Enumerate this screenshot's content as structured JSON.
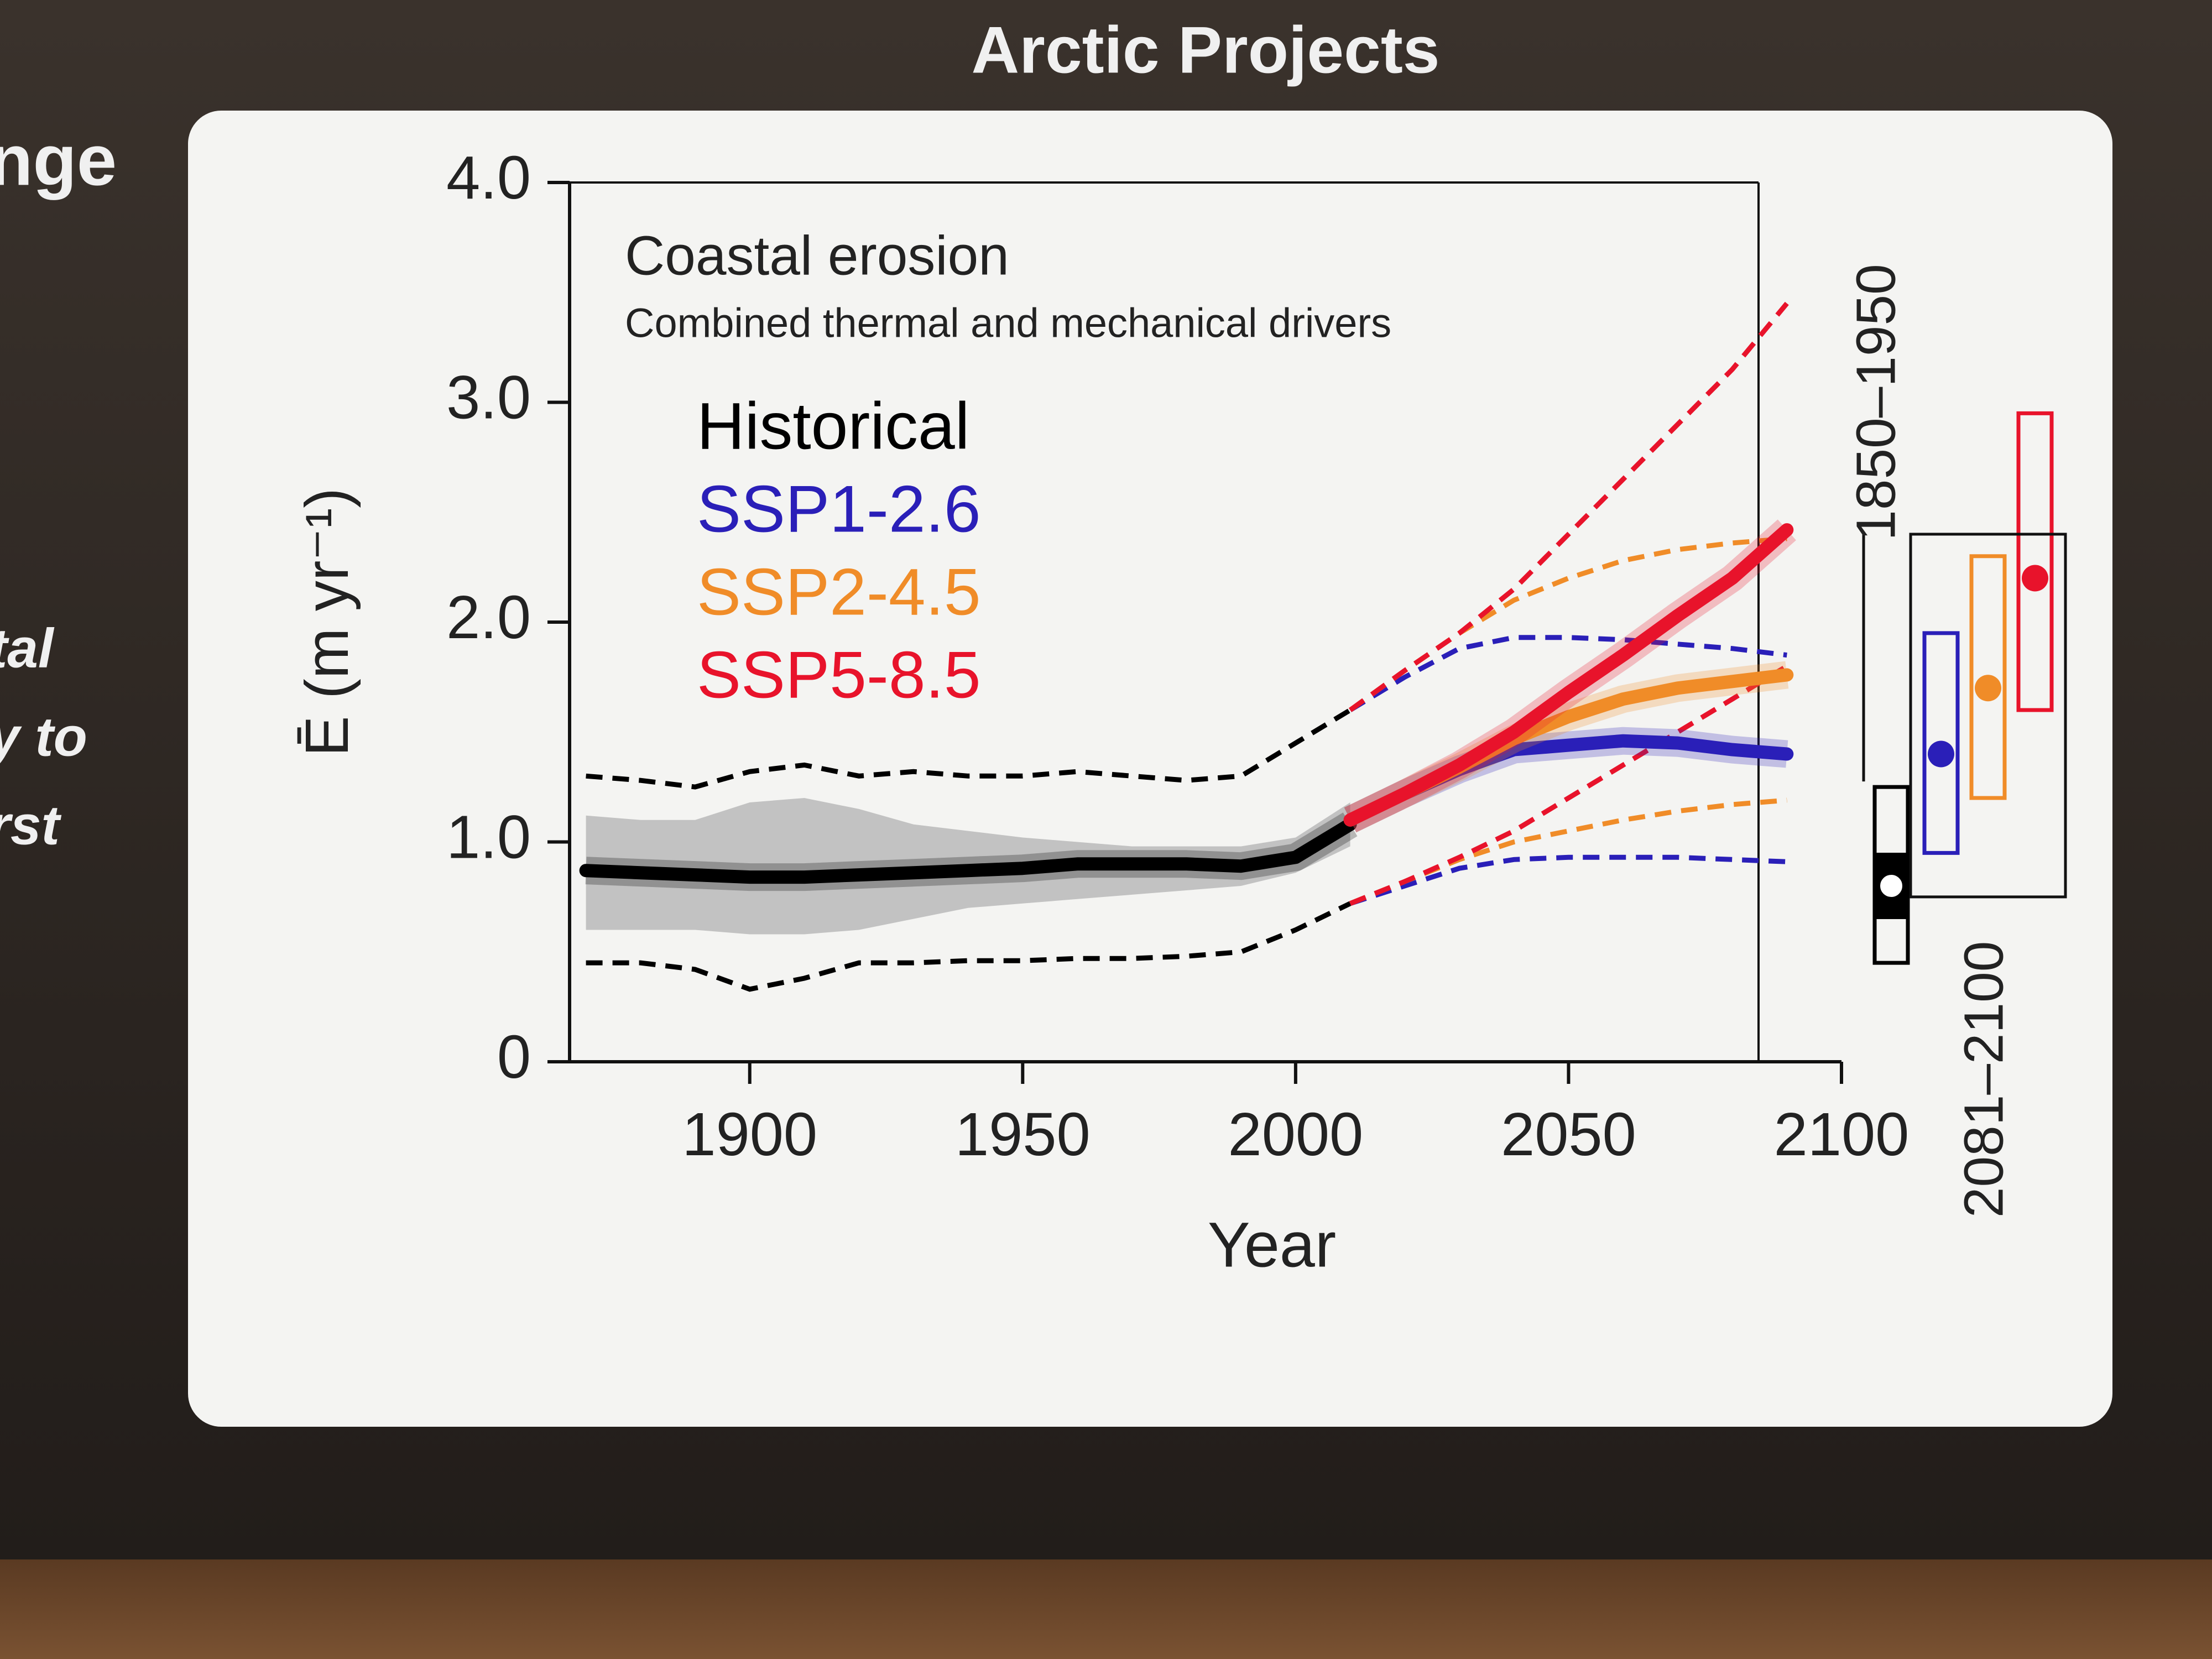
{
  "slide": {
    "title": "Arctic Projects",
    "side_text": [
      "nge",
      "tal",
      "y to",
      "rst"
    ]
  },
  "chart_data": {
    "type": "line",
    "title": "Coastal erosion",
    "subtitle": "Combined thermal and mechanical drivers",
    "x_label": "Year",
    "y_label": "Ē (m yr⁻¹)",
    "xlim": [
      1867,
      2100
    ],
    "xticks": [
      1900,
      1950,
      2000,
      2050,
      2100
    ],
    "ylim": [
      0,
      4
    ],
    "yticks": [
      0,
      {
        "value": 1,
        "label": "1.0"
      },
      {
        "value": 2,
        "label": "2.0"
      },
      {
        "value": 3,
        "label": "3.0"
      },
      {
        "value": 4,
        "label": "4.0"
      }
    ],
    "x": [
      1870,
      1880,
      1890,
      1900,
      1910,
      1920,
      1930,
      1940,
      1950,
      1960,
      1970,
      1980,
      1990,
      2000,
      2010,
      2020,
      2030,
      2040,
      2050,
      2060,
      2070,
      2080,
      2090
    ],
    "series": [
      {
        "name": "Historical",
        "color": "#000000",
        "band_color": "#bdbdbd",
        "values": [
          0.87,
          0.86,
          0.85,
          0.84,
          0.84,
          0.85,
          0.86,
          0.87,
          0.88,
          0.9,
          0.9,
          0.9,
          0.89,
          0.93,
          1.08,
          null,
          null,
          null,
          null,
          null,
          null,
          null,
          null
        ],
        "band_low": [
          0.6,
          0.6,
          0.6,
          0.58,
          0.58,
          0.6,
          0.65,
          0.7,
          0.72,
          0.74,
          0.76,
          0.78,
          0.8,
          0.86,
          0.98,
          null,
          null,
          null,
          null,
          null,
          null,
          null,
          null
        ],
        "band_high": [
          1.12,
          1.1,
          1.1,
          1.18,
          1.2,
          1.15,
          1.08,
          1.05,
          1.02,
          1.0,
          0.98,
          0.98,
          0.98,
          1.02,
          1.18,
          null,
          null,
          null,
          null,
          null,
          null,
          null,
          null
        ],
        "min": [
          0.45,
          0.45,
          0.42,
          0.33,
          0.38,
          0.45,
          0.45,
          0.46,
          0.46,
          0.47,
          0.47,
          0.48,
          0.5,
          0.6,
          0.72,
          null,
          null,
          null,
          null,
          null,
          null,
          null,
          null
        ],
        "max": [
          1.3,
          1.28,
          1.25,
          1.32,
          1.35,
          1.3,
          1.32,
          1.3,
          1.3,
          1.32,
          1.3,
          1.28,
          1.3,
          1.45,
          1.6,
          null,
          null,
          null,
          null,
          null,
          null,
          null,
          null
        ]
      },
      {
        "name": "SSP1-2.6",
        "color": "#2a1fb8",
        "values": [
          null,
          null,
          null,
          null,
          null,
          null,
          null,
          null,
          null,
          null,
          null,
          null,
          null,
          null,
          1.1,
          1.22,
          1.33,
          1.42,
          1.44,
          1.46,
          1.45,
          1.42,
          1.4
        ],
        "min": [
          null,
          null,
          null,
          null,
          null,
          null,
          null,
          null,
          null,
          null,
          null,
          null,
          null,
          null,
          0.72,
          0.8,
          0.88,
          0.92,
          0.93,
          0.93,
          0.93,
          0.92,
          0.91
        ],
        "max": [
          null,
          null,
          null,
          null,
          null,
          null,
          null,
          null,
          null,
          null,
          null,
          null,
          null,
          null,
          1.6,
          1.75,
          1.88,
          1.93,
          1.93,
          1.92,
          1.9,
          1.88,
          1.85
        ]
      },
      {
        "name": "SSP2-4.5",
        "color": "#f08c28",
        "values": [
          null,
          null,
          null,
          null,
          null,
          null,
          null,
          null,
          null,
          null,
          null,
          null,
          null,
          null,
          1.1,
          1.22,
          1.34,
          1.47,
          1.57,
          1.65,
          1.7,
          1.73,
          1.76
        ],
        "min": [
          null,
          null,
          null,
          null,
          null,
          null,
          null,
          null,
          null,
          null,
          null,
          null,
          null,
          null,
          0.72,
          0.82,
          0.92,
          1.0,
          1.05,
          1.1,
          1.14,
          1.17,
          1.19
        ],
        "max": [
          null,
          null,
          null,
          null,
          null,
          null,
          null,
          null,
          null,
          null,
          null,
          null,
          null,
          null,
          1.6,
          1.78,
          1.95,
          2.1,
          2.2,
          2.28,
          2.33,
          2.36,
          2.38
        ]
      },
      {
        "name": "SSP5-8.5",
        "color": "#e8132b",
        "values": [
          null,
          null,
          null,
          null,
          null,
          null,
          null,
          null,
          null,
          null,
          null,
          null,
          null,
          null,
          1.1,
          1.22,
          1.35,
          1.5,
          1.68,
          1.85,
          2.03,
          2.2,
          2.42
        ],
        "min": [
          null,
          null,
          null,
          null,
          null,
          null,
          null,
          null,
          null,
          null,
          null,
          null,
          null,
          null,
          0.72,
          0.82,
          0.93,
          1.05,
          1.2,
          1.35,
          1.5,
          1.65,
          1.8
        ],
        "max": [
          null,
          null,
          null,
          null,
          null,
          null,
          null,
          null,
          null,
          null,
          null,
          null,
          null,
          null,
          1.6,
          1.78,
          1.95,
          2.15,
          2.4,
          2.65,
          2.9,
          3.15,
          3.45
        ]
      }
    ],
    "period_boxes": [
      {
        "label": "1850–1950",
        "boxes": [
          {
            "color": "#000000",
            "low": 0.45,
            "high": 1.25,
            "mean": 0.8,
            "marker": "open"
          }
        ]
      },
      {
        "label": "2081–2100",
        "boxes": [
          {
            "color": "#2a1fb8",
            "low": 0.95,
            "high": 1.95,
            "mean": 1.4,
            "marker": "filled"
          },
          {
            "color": "#f08c28",
            "low": 1.2,
            "high": 2.3,
            "mean": 1.7,
            "marker": "filled"
          },
          {
            "color": "#e8132b",
            "low": 1.6,
            "high": 2.95,
            "mean": 2.2,
            "marker": "filled"
          }
        ]
      }
    ]
  }
}
